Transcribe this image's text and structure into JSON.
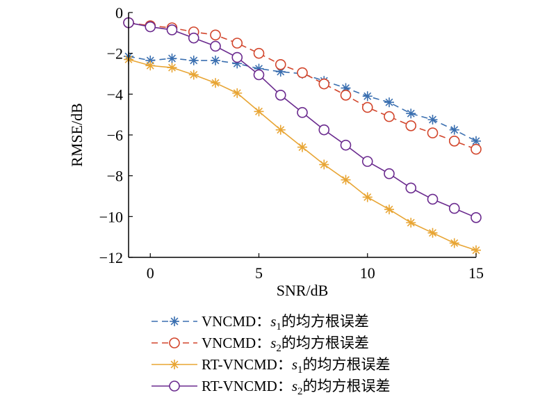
{
  "chart_data": {
    "type": "line",
    "xlabel": "SNR/dB",
    "ylabel": "RMSE/dB",
    "xlim": [
      -1,
      15
    ],
    "ylim": [
      -12,
      0
    ],
    "xticks": [
      0,
      5,
      10,
      15
    ],
    "yticks": [
      0,
      -2,
      -4,
      -6,
      -8,
      -10,
      -12
    ],
    "xtick_labels": [
      "0",
      "5",
      "10",
      "15"
    ],
    "ytick_labels": [
      "0",
      "−2",
      "−4",
      "−6",
      "−8",
      "−10",
      "−12"
    ],
    "grid": false,
    "legend_position": "bottom",
    "x": [
      -1,
      0,
      1,
      2,
      3,
      4,
      5,
      6,
      7,
      8,
      9,
      10,
      11,
      12,
      13,
      14,
      15
    ],
    "series": [
      {
        "name_prefix": "VNCMD：",
        "name_var": "s",
        "name_sub": "1",
        "name_suffix": "的均方根误差",
        "color": "#3a6fb0",
        "marker": "star",
        "dash": "dashed",
        "values": [
          -2.15,
          -2.35,
          -2.25,
          -2.35,
          -2.35,
          -2.5,
          -2.75,
          -2.9,
          -3.0,
          -3.35,
          -3.7,
          -4.1,
          -4.4,
          -4.95,
          -5.25,
          -5.75,
          -6.3
        ]
      },
      {
        "name_prefix": "VNCMD：",
        "name_var": "s",
        "name_sub": "2",
        "name_suffix": "的均方根误差",
        "color": "#d2452b",
        "marker": "circle",
        "dash": "dashed",
        "values": [
          -0.5,
          -0.65,
          -0.75,
          -0.95,
          -1.1,
          -1.5,
          -2.0,
          -2.55,
          -2.95,
          -3.5,
          -4.05,
          -4.65,
          -5.1,
          -5.55,
          -5.9,
          -6.3,
          -6.7
        ]
      },
      {
        "name_prefix": "RT-VNCMD：",
        "name_var": "s",
        "name_sub": "1",
        "name_suffix": "的均方根误差",
        "color": "#e8a534",
        "marker": "star",
        "dash": "solid",
        "values": [
          -2.3,
          -2.6,
          -2.7,
          -3.05,
          -3.45,
          -3.95,
          -4.85,
          -5.75,
          -6.6,
          -7.45,
          -8.2,
          -9.05,
          -9.65,
          -10.3,
          -10.8,
          -11.3,
          -11.65
        ]
      },
      {
        "name_prefix": "RT-VNCMD：",
        "name_var": "s",
        "name_sub": "2",
        "name_suffix": "的均方根误差",
        "color": "#6a2a8e",
        "marker": "circle",
        "dash": "solid",
        "values": [
          -0.5,
          -0.7,
          -0.85,
          -1.25,
          -1.65,
          -2.2,
          -3.05,
          -4.05,
          -4.9,
          -5.75,
          -6.5,
          -7.3,
          -7.9,
          -8.6,
          -9.15,
          -9.6,
          -10.05
        ]
      }
    ]
  }
}
